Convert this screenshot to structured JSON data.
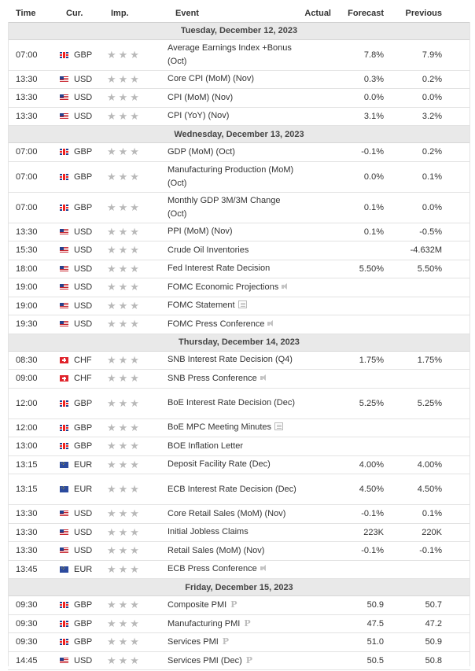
{
  "headers": {
    "time": "Time",
    "currency": "Cur.",
    "importance": "Imp.",
    "event": "Event",
    "actual": "Actual",
    "forecast": "Forecast",
    "previous": "Previous"
  },
  "stars": "★★★",
  "icons": {
    "importance": "star-icon",
    "speech": "speaker-icon",
    "report": "document-icon",
    "preliminary": "preliminary-icon"
  },
  "days": [
    {
      "label": "Tuesday, December 12, 2023",
      "events": [
        {
          "time": "07:00",
          "cur": "GBP",
          "flag": "gbp",
          "event": "Average Earnings Index +Bonus (Oct)",
          "forecast": "7.8%",
          "previous": "7.9%",
          "tall": true
        },
        {
          "time": "13:30",
          "cur": "USD",
          "flag": "usd",
          "event": "Core CPI (MoM) (Nov)",
          "forecast": "0.3%",
          "previous": "0.2%"
        },
        {
          "time": "13:30",
          "cur": "USD",
          "flag": "usd",
          "event": "CPI (MoM) (Nov)",
          "forecast": "0.0%",
          "previous": "0.0%"
        },
        {
          "time": "13:30",
          "cur": "USD",
          "flag": "usd",
          "event": "CPI (YoY) (Nov)",
          "forecast": "3.1%",
          "previous": "3.2%"
        }
      ]
    },
    {
      "label": "Wednesday, December 13, 2023",
      "events": [
        {
          "time": "07:00",
          "cur": "GBP",
          "flag": "gbp",
          "event": "GDP (MoM) (Oct)",
          "forecast": "-0.1%",
          "previous": "0.2%"
        },
        {
          "time": "07:00",
          "cur": "GBP",
          "flag": "gbp",
          "event": "Manufacturing Production (MoM) (Oct)",
          "forecast": "0.0%",
          "previous": "0.1%",
          "tall": true
        },
        {
          "time": "07:00",
          "cur": "GBP",
          "flag": "gbp",
          "event": "Monthly GDP 3M/3M Change (Oct)",
          "forecast": "0.1%",
          "previous": "0.0%",
          "tall": true
        },
        {
          "time": "13:30",
          "cur": "USD",
          "flag": "usd",
          "event": "PPI (MoM) (Nov)",
          "forecast": "0.1%",
          "previous": "-0.5%"
        },
        {
          "time": "15:30",
          "cur": "USD",
          "flag": "usd",
          "event": "Crude Oil Inventories",
          "forecast": "",
          "previous": "-4.632M"
        },
        {
          "time": "18:00",
          "cur": "USD",
          "flag": "usd",
          "event": "Fed Interest Rate Decision",
          "forecast": "5.50%",
          "previous": "5.50%"
        },
        {
          "time": "19:00",
          "cur": "USD",
          "flag": "usd",
          "event": "FOMC Economic Projections",
          "forecast": "",
          "previous": "",
          "icon": "spk"
        },
        {
          "time": "19:00",
          "cur": "USD",
          "flag": "usd",
          "event": "FOMC Statement",
          "forecast": "",
          "previous": "",
          "icon": "doc"
        },
        {
          "time": "19:30",
          "cur": "USD",
          "flag": "usd",
          "event": "FOMC Press Conference",
          "forecast": "",
          "previous": "",
          "icon": "spk"
        }
      ]
    },
    {
      "label": "Thursday, December 14, 2023",
      "events": [
        {
          "time": "08:30",
          "cur": "CHF",
          "flag": "chf",
          "event": "SNB Interest Rate Decision (Q4)",
          "forecast": "1.75%",
          "previous": "1.75%"
        },
        {
          "time": "09:00",
          "cur": "CHF",
          "flag": "chf",
          "event": "SNB Press Conference",
          "forecast": "",
          "previous": "",
          "icon": "spk"
        },
        {
          "time": "12:00",
          "cur": "GBP",
          "flag": "gbp",
          "event": "BoE Interest Rate Decision (Dec)",
          "forecast": "5.25%",
          "previous": "5.25%",
          "tall": true
        },
        {
          "time": "12:00",
          "cur": "GBP",
          "flag": "gbp",
          "event": "BoE MPC Meeting Minutes",
          "forecast": "",
          "previous": "",
          "icon": "doc"
        },
        {
          "time": "13:00",
          "cur": "GBP",
          "flag": "gbp",
          "event": "BOE Inflation Letter",
          "forecast": "",
          "previous": ""
        },
        {
          "time": "13:15",
          "cur": "EUR",
          "flag": "eur",
          "event": "Deposit Facility Rate (Dec)",
          "forecast": "4.00%",
          "previous": "4.00%"
        },
        {
          "time": "13:15",
          "cur": "EUR",
          "flag": "eur",
          "event": "ECB Interest Rate Decision (Dec)",
          "forecast": "4.50%",
          "previous": "4.50%",
          "tall": true
        },
        {
          "time": "13:30",
          "cur": "USD",
          "flag": "usd",
          "event": "Core Retail Sales (MoM) (Nov)",
          "forecast": "-0.1%",
          "previous": "0.1%"
        },
        {
          "time": "13:30",
          "cur": "USD",
          "flag": "usd",
          "event": "Initial Jobless Claims",
          "forecast": "223K",
          "previous": "220K"
        },
        {
          "time": "13:30",
          "cur": "USD",
          "flag": "usd",
          "event": "Retail Sales (MoM) (Nov)",
          "forecast": "-0.1%",
          "previous": "-0.1%"
        },
        {
          "time": "13:45",
          "cur": "EUR",
          "flag": "eur",
          "event": "ECB Press Conference",
          "forecast": "",
          "previous": "",
          "icon": "spk"
        }
      ]
    },
    {
      "label": "Friday, December 15, 2023",
      "events": [
        {
          "time": "09:30",
          "cur": "GBP",
          "flag": "gbp",
          "event": "Composite PMI",
          "forecast": "50.9",
          "previous": "50.7",
          "icon": "pre"
        },
        {
          "time": "09:30",
          "cur": "GBP",
          "flag": "gbp",
          "event": "Manufacturing PMI",
          "forecast": "47.5",
          "previous": "47.2",
          "icon": "pre"
        },
        {
          "time": "09:30",
          "cur": "GBP",
          "flag": "gbp",
          "event": "Services PMI",
          "forecast": "51.0",
          "previous": "50.9",
          "icon": "pre"
        },
        {
          "time": "14:45",
          "cur": "USD",
          "flag": "usd",
          "event": "Services PMI (Dec)",
          "forecast": "50.5",
          "previous": "50.8",
          "icon": "pre"
        }
      ]
    }
  ]
}
